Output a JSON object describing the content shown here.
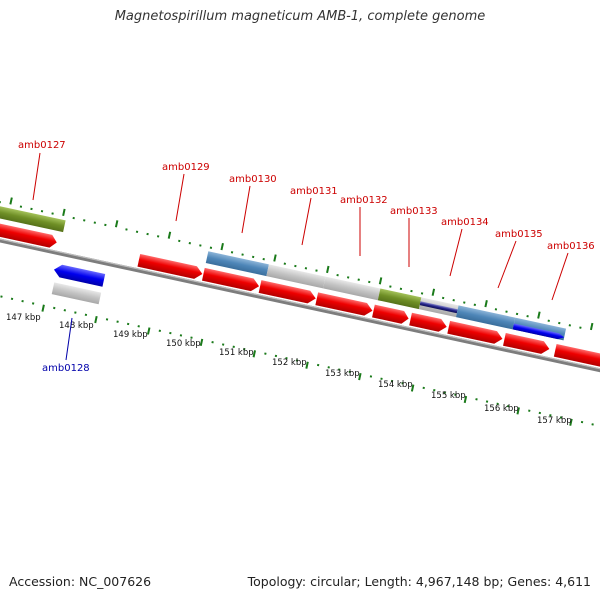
{
  "title": "Magnetospirillum magneticum AMB-1, complete genome",
  "footer": {
    "accession": "Accession: NC_007626",
    "topology": "Topology: circular; Length: 4,967,148 bp; Genes: 4,611"
  },
  "colors": {
    "label_forward": "#cc0000",
    "label_reverse": "#0000aa",
    "tick": "#1a7a1a",
    "backbone": "#888888"
  },
  "scale_labels": [
    "147 kbp",
    "148 kbp",
    "149 kbp",
    "150 kbp",
    "151 kbp",
    "152 kbp",
    "153 kbp",
    "154 kbp",
    "155 kbp",
    "156 kbp",
    "157 kbp"
  ],
  "gene_labels": [
    {
      "text": "amb0127",
      "strand": "forward"
    },
    {
      "text": "amb0128",
      "strand": "reverse"
    },
    {
      "text": "amb0129",
      "strand": "forward"
    },
    {
      "text": "amb0130",
      "strand": "forward"
    },
    {
      "text": "amb0131",
      "strand": "forward"
    },
    {
      "text": "amb0132",
      "strand": "forward"
    },
    {
      "text": "amb0133",
      "strand": "forward"
    },
    {
      "text": "amb0134",
      "strand": "forward"
    },
    {
      "text": "amb0135",
      "strand": "forward"
    },
    {
      "text": "amb0136",
      "strand": "forward"
    }
  ]
}
